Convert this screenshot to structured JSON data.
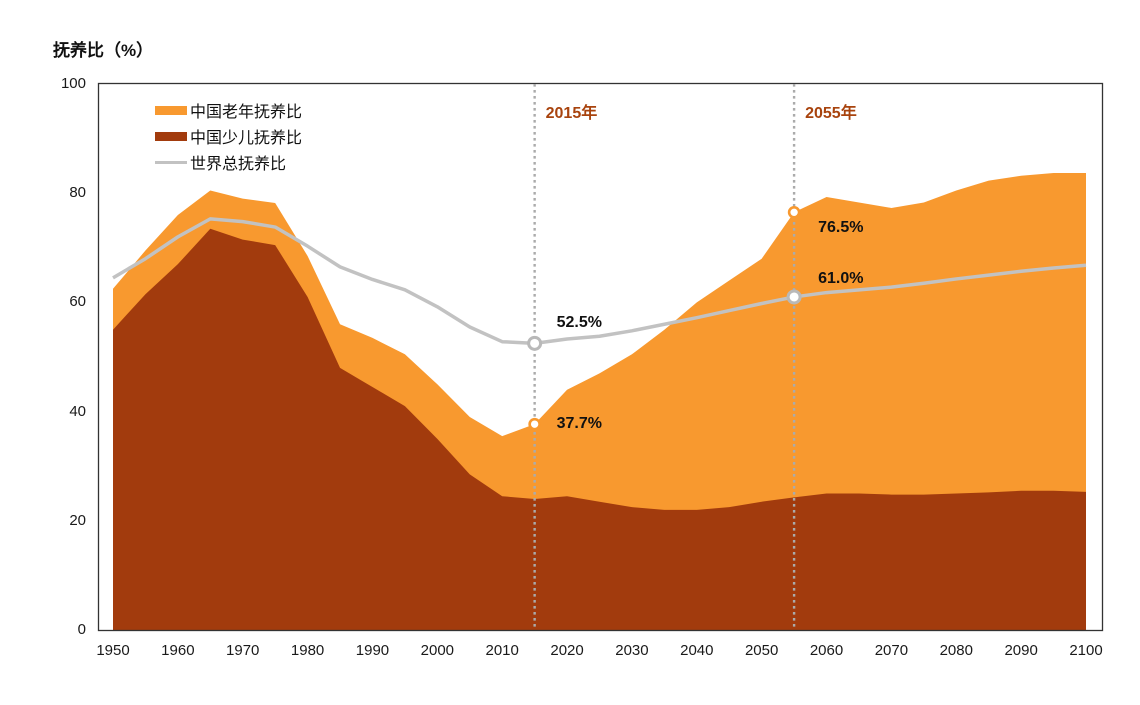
{
  "title": "抚养比（%）",
  "legend": {
    "items": [
      {
        "label": "中国老年抚养比",
        "color": "#F8992F",
        "shape": "bar"
      },
      {
        "label": "中国少儿抚养比",
        "color": "#A23B0D",
        "shape": "bar"
      },
      {
        "label": "世界总抚养比",
        "color": "#C2C2C2",
        "shape": "line"
      }
    ]
  },
  "chart_data": {
    "type": "area",
    "title": "抚养比（%）",
    "xlabel": "",
    "ylabel": "抚养比（%）",
    "xlim": [
      1950,
      2100
    ],
    "ylim": [
      0,
      100
    ],
    "grid": false,
    "legend_position": "top-left-inside",
    "x_ticks": [
      1950,
      1960,
      1970,
      1980,
      1990,
      2000,
      2010,
      2020,
      2030,
      2040,
      2050,
      2060,
      2070,
      2080,
      2090,
      2100
    ],
    "y_ticks": [
      0,
      20,
      40,
      60,
      80,
      100
    ],
    "x": [
      1950,
      1955,
      1960,
      1965,
      1970,
      1975,
      1980,
      1985,
      1990,
      1995,
      2000,
      2005,
      2010,
      2015,
      2020,
      2025,
      2030,
      2035,
      2040,
      2045,
      2050,
      2055,
      2060,
      2065,
      2070,
      2075,
      2080,
      2085,
      2090,
      2095,
      2100
    ],
    "series": [
      {
        "name": "中国老年抚养比",
        "type": "area",
        "stack": "china",
        "stack_level": "top",
        "color": "#F8992F",
        "values": [
          7.5,
          8,
          9,
          7,
          7.5,
          7.7,
          7.5,
          8,
          9,
          9.5,
          10,
          10.5,
          11,
          13.7,
          19.5,
          23.5,
          28,
          33,
          38,
          41.5,
          44.5,
          52.2,
          54.3,
          53.3,
          52.5,
          53.5,
          55.5,
          57.1,
          57.7,
          58.2,
          58.4
        ]
      },
      {
        "name": "中国少儿抚养比",
        "type": "area",
        "stack": "china",
        "stack_level": "bottom",
        "color": "#A23B0D",
        "values": [
          55,
          61.5,
          67,
          73.5,
          71.5,
          70.5,
          61,
          48,
          44.5,
          41,
          35,
          28.5,
          24.5,
          24,
          24.5,
          23.5,
          22.5,
          22,
          22,
          22.5,
          23.5,
          24.3,
          25,
          25,
          24.8,
          24.8,
          25,
          25.2,
          25.5,
          25.5,
          25.3
        ]
      },
      {
        "name": "世界总抚养比",
        "type": "line",
        "color": "#C2C2C2",
        "values": [
          64.5,
          68,
          72,
          75.3,
          74.8,
          73.8,
          70.3,
          66.5,
          64.2,
          62.3,
          59.2,
          55.5,
          52.8,
          52.5,
          53.3,
          53.8,
          54.8,
          56,
          57.2,
          58.5,
          59.8,
          61,
          61.8,
          62.3,
          62.8,
          63.5,
          64.3,
          65,
          65.7,
          66.3,
          66.8
        ]
      }
    ],
    "annotations": {
      "vline_color": "#ABABAB",
      "vline_label_color": "#A8430D",
      "point_label_color": "#111111",
      "vlines": [
        {
          "x": 2015,
          "label": "2015年"
        },
        {
          "x": 2055,
          "label": "2055年"
        }
      ],
      "points": [
        {
          "x": 2015,
          "y": 37.7,
          "label": "37.7%",
          "marker_color": "#F8992F"
        },
        {
          "x": 2015,
          "y": 52.5,
          "label": "52.5%",
          "marker_color": "#B9B9B9"
        },
        {
          "x": 2055,
          "y": 76.5,
          "label": "76.5%",
          "marker_color": "#F8992F"
        },
        {
          "x": 2055,
          "y": 61.0,
          "label": "61.0%",
          "marker_color": "#B9B9B9"
        }
      ]
    }
  }
}
